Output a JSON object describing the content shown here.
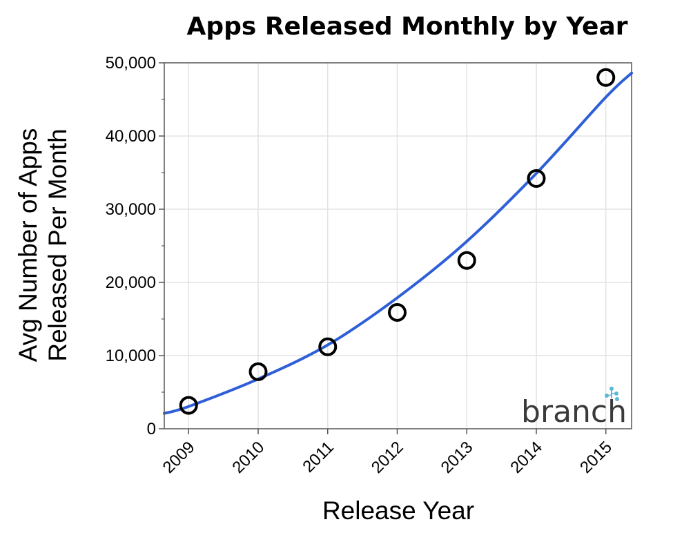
{
  "chart_data": {
    "type": "scatter",
    "title": "Apps Released Monthly by Year",
    "xlabel": "Release Year",
    "ylabel_lines": [
      "Avg Number of Apps",
      "Released Per Month"
    ],
    "x": [
      2009,
      2010,
      2011,
      2012,
      2013,
      2014,
      2015
    ],
    "x_tick_labels": [
      "2009",
      "2010",
      "2011",
      "2012",
      "2013",
      "2014",
      "2015"
    ],
    "y_tick_values": [
      0,
      10000,
      20000,
      30000,
      40000,
      50000
    ],
    "y_tick_labels": [
      "0",
      "10,000",
      "20,000",
      "30,000",
      "40,000",
      "50,000"
    ],
    "series": [
      {
        "type": "scatter",
        "x": [
          2009,
          2010,
          2011,
          2012,
          2013,
          2014,
          2015
        ],
        "values": [
          3200,
          7800,
          11200,
          15900,
          23000,
          34200,
          48000
        ],
        "marker": "open-circle",
        "color": "#000000"
      },
      {
        "type": "line",
        "fit": "quadratic",
        "x": [
          2008.65,
          2009,
          2010,
          2011,
          2012,
          2013,
          2014,
          2015,
          2015.37
        ],
        "values": [
          2100,
          3050,
          6800,
          11450,
          17900,
          25600,
          34900,
          45300,
          48600
        ],
        "color": "#2e5fd8"
      }
    ],
    "xlim": [
      2008.65,
      2015.37
    ],
    "ylim": [
      0,
      50000
    ],
    "grid": true,
    "legend": "none"
  },
  "logo": {
    "text": "branch",
    "color": "#3a3a3a",
    "accent": "#5bb8d6"
  }
}
